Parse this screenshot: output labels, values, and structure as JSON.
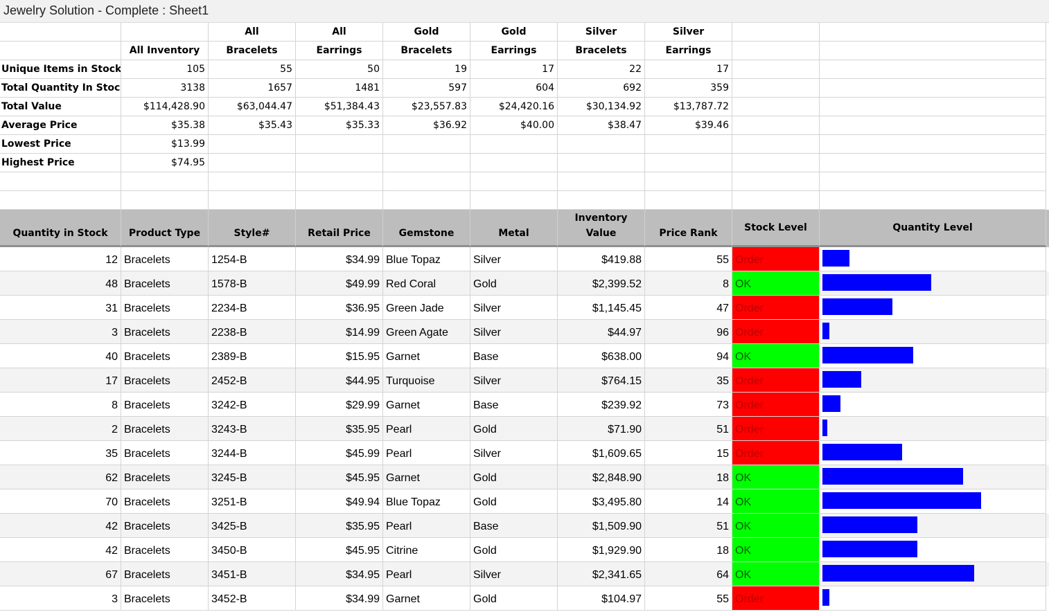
{
  "window": {
    "title": "Jewelry Solution - Complete : Sheet1"
  },
  "summary": {
    "headers_line1": [
      "",
      "",
      "All",
      "All",
      "Gold",
      "Gold",
      "Silver",
      "Silver"
    ],
    "headers_line2": [
      "",
      "All Inventory",
      "Bracelets",
      "Earrings",
      "Bracelets",
      "Earrings",
      "Bracelets",
      "Earrings"
    ],
    "rows": [
      {
        "label": "Unique Items in Stock",
        "values": [
          "105",
          "55",
          "50",
          "19",
          "17",
          "22",
          "17"
        ]
      },
      {
        "label": "Total Quantity In Stock",
        "values": [
          "3138",
          "1657",
          "1481",
          "597",
          "604",
          "692",
          "359"
        ]
      },
      {
        "label": "Total Value",
        "values": [
          "$114,428.90",
          "$63,044.47",
          "$51,384.43",
          "$23,557.83",
          "$24,420.16",
          "$30,134.92",
          "$13,787.72"
        ]
      },
      {
        "label": "Average Price",
        "values": [
          "$35.38",
          "$35.43",
          "$35.33",
          "$36.92",
          "$40.00",
          "$38.47",
          "$39.46"
        ]
      },
      {
        "label": "Lowest Price",
        "values": [
          "$13.99",
          "",
          "",
          "",
          "",
          "",
          ""
        ]
      },
      {
        "label": "Highest Price",
        "values": [
          "$74.95",
          "",
          "",
          "",
          "",
          "",
          ""
        ]
      }
    ]
  },
  "table": {
    "headers": {
      "quantity": "Quantity in Stock",
      "product_type": "Product Type",
      "style": "Style#",
      "retail_price": "Retail Price",
      "gemstone": "Gemstone",
      "metal": "Metal",
      "inventory_value": "Inventory Value",
      "price_rank": "Price Rank",
      "stock_level": "Stock Level",
      "quantity_level": "Quantity Level"
    },
    "max_quantity_for_bar": 70,
    "rows": [
      {
        "qty": "12",
        "type": "Bracelets",
        "style": "1254-B",
        "price": "$34.99",
        "gem": "Blue Topaz",
        "metal": "Silver",
        "value": "$419.88",
        "rank": "55",
        "stock": "Order"
      },
      {
        "qty": "48",
        "type": "Bracelets",
        "style": "1578-B",
        "price": "$49.99",
        "gem": "Red Coral",
        "metal": "Gold",
        "value": "$2,399.52",
        "rank": "8",
        "stock": "OK"
      },
      {
        "qty": "31",
        "type": "Bracelets",
        "style": "2234-B",
        "price": "$36.95",
        "gem": "Green Jade",
        "metal": "Silver",
        "value": "$1,145.45",
        "rank": "47",
        "stock": "Order"
      },
      {
        "qty": "3",
        "type": "Bracelets",
        "style": "2238-B",
        "price": "$14.99",
        "gem": "Green Agate",
        "metal": "Silver",
        "value": "$44.97",
        "rank": "96",
        "stock": "Order"
      },
      {
        "qty": "40",
        "type": "Bracelets",
        "style": "2389-B",
        "price": "$15.95",
        "gem": "Garnet",
        "metal": "Base",
        "value": "$638.00",
        "rank": "94",
        "stock": "OK"
      },
      {
        "qty": "17",
        "type": "Bracelets",
        "style": "2452-B",
        "price": "$44.95",
        "gem": "Turquoise",
        "metal": "Silver",
        "value": "$764.15",
        "rank": "35",
        "stock": "Order"
      },
      {
        "qty": "8",
        "type": "Bracelets",
        "style": "3242-B",
        "price": "$29.99",
        "gem": "Garnet",
        "metal": "Base",
        "value": "$239.92",
        "rank": "73",
        "stock": "Order"
      },
      {
        "qty": "2",
        "type": "Bracelets",
        "style": "3243-B",
        "price": "$35.95",
        "gem": "Pearl",
        "metal": "Gold",
        "value": "$71.90",
        "rank": "51",
        "stock": "Order"
      },
      {
        "qty": "35",
        "type": "Bracelets",
        "style": "3244-B",
        "price": "$45.99",
        "gem": "Pearl",
        "metal": "Silver",
        "value": "$1,609.65",
        "rank": "15",
        "stock": "Order"
      },
      {
        "qty": "62",
        "type": "Bracelets",
        "style": "3245-B",
        "price": "$45.95",
        "gem": "Garnet",
        "metal": "Gold",
        "value": "$2,848.90",
        "rank": "18",
        "stock": "OK"
      },
      {
        "qty": "70",
        "type": "Bracelets",
        "style": "3251-B",
        "price": "$49.94",
        "gem": "Blue Topaz",
        "metal": "Gold",
        "value": "$3,495.80",
        "rank": "14",
        "stock": "OK"
      },
      {
        "qty": "42",
        "type": "Bracelets",
        "style": "3425-B",
        "price": "$35.95",
        "gem": "Pearl",
        "metal": "Base",
        "value": "$1,509.90",
        "rank": "51",
        "stock": "OK"
      },
      {
        "qty": "42",
        "type": "Bracelets",
        "style": "3450-B",
        "price": "$45.95",
        "gem": "Citrine",
        "metal": "Gold",
        "value": "$1,929.90",
        "rank": "18",
        "stock": "OK"
      },
      {
        "qty": "67",
        "type": "Bracelets",
        "style": "3451-B",
        "price": "$34.95",
        "gem": "Pearl",
        "metal": "Silver",
        "value": "$2,341.65",
        "rank": "64",
        "stock": "OK"
      },
      {
        "qty": "3",
        "type": "Bracelets",
        "style": "3452-B",
        "price": "$34.99",
        "gem": "Garnet",
        "metal": "Gold",
        "value": "$104.97",
        "rank": "55",
        "stock": "Order"
      }
    ]
  },
  "colors": {
    "order_fill": "#ff0000",
    "ok_fill": "#00ff00",
    "bar_fill": "#0000ff",
    "header_fill": "#bdbdbd"
  }
}
